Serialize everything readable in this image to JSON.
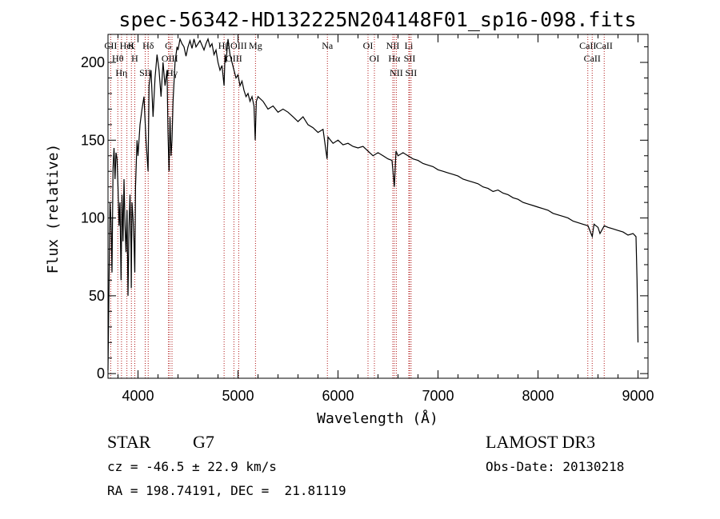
{
  "chart_data": {
    "type": "line",
    "title": "spec-56342-HD132225N204148F01_sp16-098.fits",
    "xlabel": "Wavelength (Å)",
    "ylabel": "Flux (relative)",
    "xlim": [
      3700,
      9100
    ],
    "ylim": [
      -3,
      218
    ],
    "xticks": [
      4000,
      5000,
      6000,
      7000,
      8000,
      9000
    ],
    "yticks": [
      0,
      50,
      100,
      150,
      200
    ],
    "series": [
      {
        "name": "spectrum",
        "x": [
          3700,
          3710,
          3720,
          3730,
          3740,
          3750,
          3760,
          3770,
          3780,
          3790,
          3800,
          3810,
          3820,
          3830,
          3840,
          3850,
          3860,
          3870,
          3880,
          3890,
          3900,
          3910,
          3920,
          3930,
          3933,
          3940,
          3950,
          3960,
          3968,
          3975,
          3990,
          4000,
          4020,
          4040,
          4060,
          4080,
          4101,
          4110,
          4130,
          4150,
          4170,
          4190,
          4210,
          4230,
          4250,
          4270,
          4290,
          4300,
          4310,
          4320,
          4330,
          4340,
          4350,
          4370,
          4390,
          4400,
          4420,
          4440,
          4460,
          4480,
          4500,
          4520,
          4540,
          4560,
          4580,
          4600,
          4620,
          4640,
          4660,
          4680,
          4700,
          4720,
          4740,
          4760,
          4780,
          4800,
          4820,
          4840,
          4861,
          4870,
          4880,
          4900,
          4920,
          4940,
          4960,
          4980,
          5000,
          5020,
          5040,
          5060,
          5080,
          5100,
          5120,
          5140,
          5160,
          5172,
          5183,
          5200,
          5250,
          5300,
          5350,
          5400,
          5450,
          5500,
          5550,
          5600,
          5650,
          5700,
          5750,
          5800,
          5850,
          5890,
          5900,
          5950,
          6000,
          6050,
          6100,
          6150,
          6200,
          6250,
          6300,
          6350,
          6400,
          6450,
          6500,
          6540,
          6563,
          6580,
          6600,
          6650,
          6700,
          6750,
          6800,
          6850,
          6900,
          6950,
          7000,
          7050,
          7100,
          7150,
          7200,
          7250,
          7300,
          7350,
          7400,
          7450,
          7500,
          7550,
          7600,
          7650,
          7700,
          7750,
          7800,
          7850,
          7900,
          7950,
          8000,
          8050,
          8100,
          8150,
          8200,
          8250,
          8300,
          8350,
          8400,
          8450,
          8500,
          8542,
          8560,
          8600,
          8620,
          8662,
          8700,
          8750,
          8800,
          8850,
          8900,
          8950,
          8980,
          8990,
          9000
        ],
        "values": [
          2,
          60,
          110,
          98,
          65,
          132,
          145,
          125,
          142,
          138,
          120,
          95,
          110,
          60,
          115,
          85,
          125,
          95,
          78,
          105,
          50,
          95,
          115,
          80,
          55,
          110,
          100,
          85,
          65,
          120,
          150,
          140,
          160,
          170,
          178,
          150,
          130,
          185,
          195,
          165,
          190,
          205,
          195,
          178,
          200,
          185,
          195,
          155,
          130,
          165,
          140,
          150,
          175,
          200,
          210,
          208,
          215,
          212,
          210,
          204,
          210,
          214,
          209,
          215,
          210,
          212,
          214,
          211,
          208,
          212,
          215,
          210,
          212,
          205,
          208,
          200,
          195,
          198,
          185,
          205,
          200,
          215,
          205,
          200,
          195,
          190,
          192,
          185,
          188,
          182,
          178,
          180,
          175,
          178,
          172,
          150,
          175,
          178,
          175,
          170,
          172,
          168,
          170,
          168,
          165,
          162,
          165,
          160,
          158,
          155,
          157,
          138,
          152,
          148,
          150,
          147,
          148,
          146,
          145,
          146,
          143,
          140,
          142,
          140,
          138,
          137,
          120,
          143,
          140,
          142,
          140,
          138,
          137,
          135,
          134,
          133,
          131,
          130,
          129,
          128,
          127,
          125,
          124,
          123,
          122,
          120,
          119,
          117,
          118,
          116,
          115,
          113,
          112,
          110,
          109,
          108,
          107,
          106,
          105,
          103,
          102,
          101,
          100,
          98,
          97,
          96,
          95,
          88,
          96,
          94,
          90,
          95,
          94,
          93,
          92,
          91,
          89,
          90,
          88,
          60,
          20
        ]
      }
    ],
    "spectral_lines": [
      {
        "label": "CII",
        "x": 3727
      },
      {
        "label": "Hθ",
        "x": 3798
      },
      {
        "label": "Hη",
        "x": 3835
      },
      {
        "label": "HeI",
        "x": 3889
      },
      {
        "label": "K",
        "x": 3934
      },
      {
        "label": "H",
        "x": 3968
      },
      {
        "label": "SII",
        "x": 4072
      },
      {
        "label": "Hδ",
        "x": 4102
      },
      {
        "label": "G",
        "x": 4304
      },
      {
        "label": "OIII",
        "x": 4318
      },
      {
        "label": "Hγ",
        "x": 4340
      },
      {
        "label": "Hβ",
        "x": 4861
      },
      {
        "label": "OIII",
        "x": 4959
      },
      {
        "label": "OIII",
        "x": 5007
      },
      {
        "label": "Mg",
        "x": 5175
      },
      {
        "label": "Na",
        "x": 5894
      },
      {
        "label": "OI",
        "x": 6300
      },
      {
        "label": "OI",
        "x": 6364
      },
      {
        "label": "NII",
        "x": 6548
      },
      {
        "label": "Hα",
        "x": 6563
      },
      {
        "label": "NII",
        "x": 6583
      },
      {
        "label": "Li",
        "x": 6708
      },
      {
        "label": "SII",
        "x": 6716
      },
      {
        "label": "SII",
        "x": 6731
      },
      {
        "label": "CaII",
        "x": 8498
      },
      {
        "label": "CaII",
        "x": 8542
      },
      {
        "label": "CaII",
        "x": 8662
      }
    ]
  },
  "info": {
    "object_type": "STAR",
    "subclass": "G7",
    "survey": "LAMOST DR3",
    "cz": "cz = -46.5 ± 22.9 km/s",
    "obs_date": "Obs-Date: 20130218",
    "coords": "RA = 198.74191, DEC =  21.81119"
  },
  "colors": {
    "line_marker": "#b01818",
    "spectrum": "#000000"
  }
}
